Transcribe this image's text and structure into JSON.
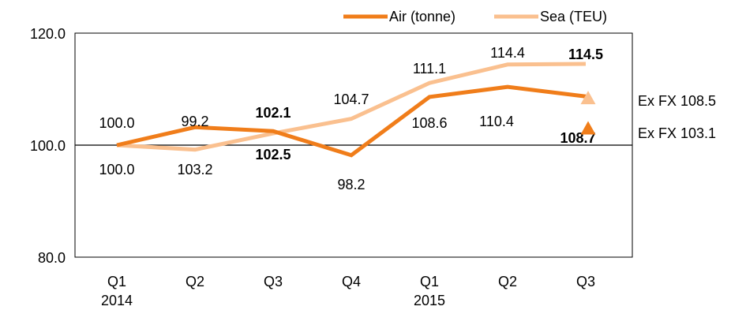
{
  "chart_data": {
    "type": "line",
    "categories": [
      "Q1\n2014",
      "Q2",
      "Q3",
      "Q4",
      "Q1\n2015",
      "Q2",
      "Q3"
    ],
    "y_ticks": [
      "80.0",
      "100.0",
      "120.0"
    ],
    "ylim": [
      80,
      120
    ],
    "baseline": 100,
    "legend": {
      "placement": "top-right"
    },
    "series": [
      {
        "name": "Air (tonne)",
        "color": "#F07D1A",
        "values": [
          100.0,
          103.2,
          102.5,
          98.2,
          108.6,
          110.4,
          108.7
        ],
        "labels": [
          "100.0",
          "103.2",
          "102.5",
          "98.2",
          "108.6",
          "110.4",
          "108.7"
        ],
        "bold": [
          false,
          false,
          true,
          false,
          false,
          false,
          true
        ],
        "label_pos": [
          "below",
          "below",
          "below",
          "below",
          "below",
          "above-left",
          "below"
        ]
      },
      {
        "name": "Sea (TEU)",
        "color": "#FAC08F",
        "values": [
          100.0,
          99.2,
          102.1,
          104.7,
          111.1,
          114.4,
          114.5
        ],
        "labels": [
          "100.0",
          "99.2",
          "102.1",
          "104.7",
          "111.1",
          "114.4",
          "114.5"
        ],
        "bold": [
          false,
          false,
          true,
          false,
          false,
          false,
          true
        ],
        "label_pos": [
          "above",
          "above",
          "above",
          "above",
          "above",
          "above",
          "above"
        ]
      }
    ],
    "ex_fx_markers": [
      {
        "label": "Ex FX 108.5",
        "value": 108.5,
        "color": "#FAC08F",
        "category_index": 6
      },
      {
        "label": "Ex FX 103.1",
        "value": 103.1,
        "color": "#F07D1A",
        "category_index": 6
      }
    ]
  }
}
